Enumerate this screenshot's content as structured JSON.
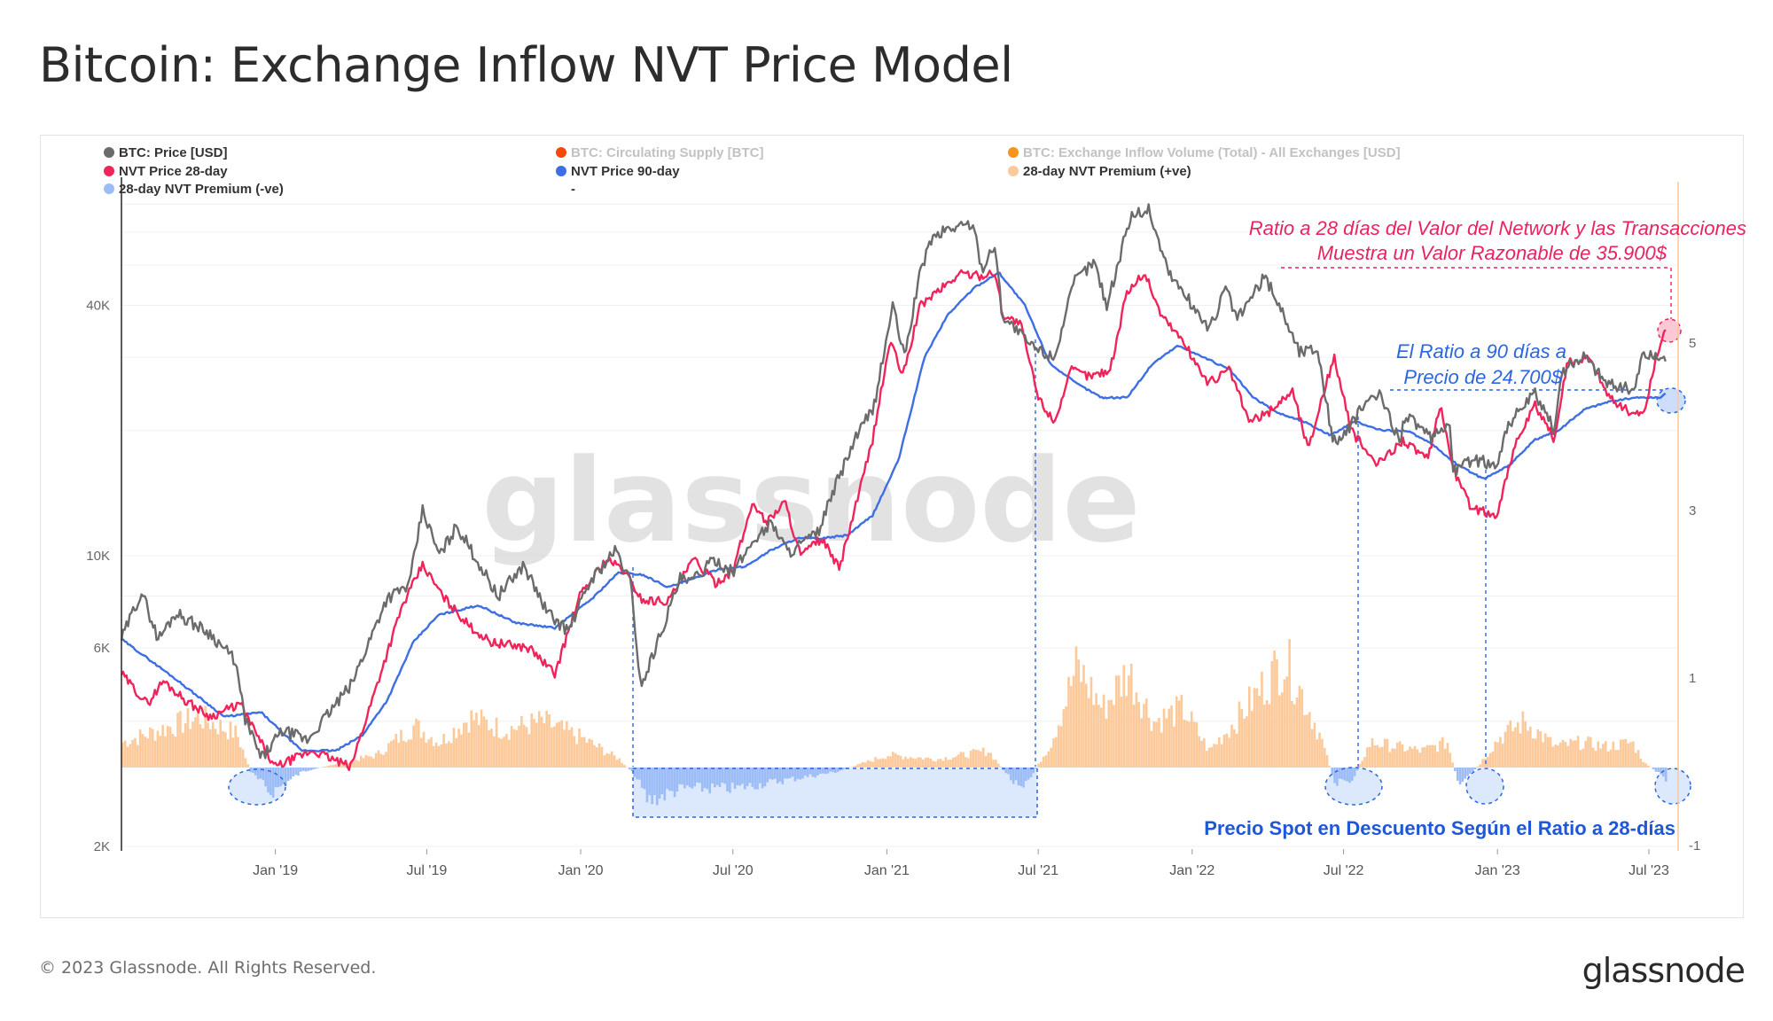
{
  "header": {
    "title": "Bitcoin: Exchange Inflow NVT Price Model"
  },
  "footer": {
    "copyright": "© 2023 Glassnode. All Rights Reserved.",
    "brand": "glassnode"
  },
  "watermark": "glassnode",
  "chart_data": {
    "type": "line",
    "title": "Bitcoin: Exchange Inflow NVT Price Model",
    "y_scale": "log",
    "ylim_left": [
      2000,
      90000
    ],
    "ylim_right": [
      -1,
      7
    ],
    "y_ticks_left": [
      "2K",
      "6K",
      "10K",
      "40K"
    ],
    "y_tick_values_left": [
      2000,
      6000,
      10000,
      40000
    ],
    "y_ticks_right": [
      "-1",
      "1",
      "3",
      "5"
    ],
    "y_tick_values_right": [
      -1,
      1,
      3,
      5
    ],
    "x_range": [
      "2018-07-01",
      "2023-08-05"
    ],
    "x_ticks": [
      "Jan '19",
      "Jul '19",
      "Jan '20",
      "Jul '20",
      "Jan '21",
      "Jul '21",
      "Jan '22",
      "Jul '22",
      "Jan '23",
      "Jul '23"
    ],
    "x_tick_dates": [
      "2019-01-01",
      "2019-07-01",
      "2020-01-01",
      "2020-07-01",
      "2021-01-01",
      "2021-07-01",
      "2022-01-01",
      "2022-07-01",
      "2023-01-01",
      "2023-07-01"
    ],
    "legend": [
      {
        "name": "BTC: Price [USD]",
        "color": "#6b6b6b",
        "muted": false
      },
      {
        "name": "BTC: Circulating Supply [BTC]",
        "color": "#f24a0d",
        "muted": true
      },
      {
        "name": "BTC: Exchange Inflow Volume (Total) - All Exchanges [USD]",
        "color": "#f7931a",
        "muted": true
      },
      {
        "name": "NVT Price 28-day",
        "color": "#f0245a",
        "muted": false
      },
      {
        "name": "NVT Price 90-day",
        "color": "#3d6ee3",
        "muted": false
      },
      {
        "name": "28-day NVT Premium (+ve)",
        "color": "#fcc99a",
        "muted": false
      },
      {
        "name": "28-day NVT Premium (-ve)",
        "color": "#9cbcf6",
        "muted": false
      },
      {
        "name": "-",
        "color": "",
        "muted": false
      }
    ],
    "series": [
      {
        "name": "BTC: Price [USD]",
        "color": "#6b6b6b",
        "x": [
          "2018-07-01",
          "2018-07-25",
          "2018-08-14",
          "2018-09-04",
          "2018-10-15",
          "2018-11-14",
          "2018-11-25",
          "2018-12-15",
          "2019-01-10",
          "2019-02-08",
          "2019-04-02",
          "2019-05-14",
          "2019-06-10",
          "2019-06-26",
          "2019-07-16",
          "2019-08-06",
          "2019-09-24",
          "2019-10-25",
          "2019-11-22",
          "2019-12-17",
          "2020-01-14",
          "2020-02-12",
          "2020-03-01",
          "2020-03-12",
          "2020-03-16",
          "2020-04-29",
          "2020-05-10",
          "2020-06-10",
          "2020-07-01",
          "2020-07-27",
          "2020-08-17",
          "2020-09-05",
          "2020-10-10",
          "2020-10-21",
          "2020-11-05",
          "2020-11-24",
          "2020-12-17",
          "2021-01-08",
          "2021-01-22",
          "2021-02-08",
          "2021-02-21",
          "2021-03-13",
          "2021-04-13",
          "2021-04-25",
          "2021-05-10",
          "2021-05-19",
          "2021-06-22",
          "2021-07-20",
          "2021-08-14",
          "2021-09-06",
          "2021-09-21",
          "2021-10-20",
          "2021-11-10",
          "2021-12-04",
          "2022-01-22",
          "2022-02-10",
          "2022-02-24",
          "2022-03-29",
          "2022-04-18",
          "2022-05-09",
          "2022-05-31",
          "2022-06-18",
          "2022-07-01",
          "2022-07-30",
          "2022-08-14",
          "2022-09-06",
          "2022-09-13",
          "2022-10-14",
          "2022-11-05",
          "2022-11-09",
          "2022-12-01",
          "2022-12-31",
          "2023-01-14",
          "2023-02-15",
          "2023-03-10",
          "2023-03-18",
          "2023-04-14",
          "2023-05-12",
          "2023-06-14",
          "2023-06-23",
          "2023-07-07",
          "2023-07-22"
        ],
        "values": [
          6300,
          8200,
          6300,
          7300,
          6500,
          5600,
          4100,
          3250,
          3800,
          3600,
          4900,
          7900,
          8500,
          12900,
          10000,
          11800,
          8000,
          9500,
          7300,
          6600,
          8800,
          10300,
          8600,
          5000,
          5000,
          8800,
          8600,
          9800,
          9100,
          11000,
          12000,
          10200,
          11300,
          12900,
          15500,
          19000,
          23000,
          40000,
          30000,
          46000,
          57000,
          61000,
          63000,
          49000,
          56000,
          38000,
          32000,
          30000,
          46000,
          51000,
          40000,
          66000,
          68000,
          48000,
          35000,
          44000,
          37000,
          47000,
          39000,
          31000,
          31500,
          19000,
          19300,
          23800,
          24200,
          19000,
          22000,
          19000,
          21000,
          16000,
          17000,
          16600,
          20800,
          24500,
          20000,
          27500,
          30400,
          26000,
          25000,
          30500,
          30200,
          29800
        ]
      },
      {
        "name": "NVT Price 28-day",
        "color": "#f0245a",
        "x": [
          "2018-07-01",
          "2018-08-01",
          "2018-08-20",
          "2018-09-15",
          "2018-10-15",
          "2018-11-20",
          "2018-12-10",
          "2018-12-31",
          "2019-02-15",
          "2019-04-01",
          "2019-05-01",
          "2019-06-01",
          "2019-06-26",
          "2019-07-20",
          "2019-08-20",
          "2019-09-15",
          "2019-11-01",
          "2019-12-01",
          "2019-12-31",
          "2020-01-31",
          "2020-02-20",
          "2020-03-15",
          "2020-04-15",
          "2020-05-15",
          "2020-06-10",
          "2020-07-01",
          "2020-07-25",
          "2020-08-10",
          "2020-09-01",
          "2020-09-20",
          "2020-10-15",
          "2020-11-05",
          "2020-11-25",
          "2020-12-15",
          "2021-01-05",
          "2021-01-20",
          "2021-02-10",
          "2021-03-01",
          "2021-04-01",
          "2021-04-20",
          "2021-05-10",
          "2021-05-20",
          "2021-06-10",
          "2021-07-01",
          "2021-07-20",
          "2021-08-10",
          "2021-09-01",
          "2021-09-25",
          "2021-10-15",
          "2021-11-05",
          "2021-11-25",
          "2021-12-20",
          "2022-01-20",
          "2022-02-15",
          "2022-03-10",
          "2022-04-01",
          "2022-05-01",
          "2022-05-20",
          "2022-06-05",
          "2022-06-20",
          "2022-07-10",
          "2022-08-10",
          "2022-09-10",
          "2022-10-10",
          "2022-10-25",
          "2022-11-10",
          "2022-12-01",
          "2022-12-31",
          "2023-01-20",
          "2023-02-15",
          "2023-03-10",
          "2023-03-25",
          "2023-04-20",
          "2023-05-15",
          "2023-06-10",
          "2023-06-25",
          "2023-07-10",
          "2023-07-22"
        ],
        "values": [
          5200,
          4400,
          5000,
          4500,
          4100,
          4400,
          3700,
          3100,
          3400,
          3100,
          4800,
          7500,
          9500,
          8000,
          6800,
          6200,
          6000,
          5200,
          8000,
          9800,
          9300,
          7800,
          7800,
          9800,
          8600,
          9200,
          13500,
          12000,
          13500,
          10000,
          11000,
          9300,
          13200,
          19000,
          33000,
          27000,
          40000,
          43000,
          48000,
          47000,
          48000,
          38000,
          36000,
          24000,
          21000,
          28000,
          27000,
          28000,
          43000,
          48000,
          38000,
          33000,
          26000,
          28000,
          21000,
          22000,
          25000,
          18000,
          24000,
          30000,
          20000,
          16500,
          19000,
          17000,
          23000,
          16000,
          13000,
          12500,
          18000,
          23000,
          19000,
          29000,
          30000,
          24000,
          22000,
          22000,
          30000,
          35900
        ]
      },
      {
        "name": "NVT Price 90-day",
        "color": "#3d6ee3",
        "x": [
          "2018-07-01",
          "2018-09-01",
          "2018-11-01",
          "2018-12-15",
          "2019-02-01",
          "2019-03-15",
          "2019-04-15",
          "2019-05-15",
          "2019-06-15",
          "2019-07-15",
          "2019-09-01",
          "2019-10-15",
          "2019-12-01",
          "2020-01-15",
          "2020-02-15",
          "2020-03-15",
          "2020-04-15",
          "2020-05-15",
          "2020-06-15",
          "2020-07-15",
          "2020-08-15",
          "2020-09-15",
          "2020-10-15",
          "2020-11-15",
          "2020-12-15",
          "2021-01-15",
          "2021-02-15",
          "2021-03-15",
          "2021-04-15",
          "2021-05-15",
          "2021-06-15",
          "2021-07-15",
          "2021-08-15",
          "2021-09-15",
          "2021-10-15",
          "2021-11-15",
          "2021-12-15",
          "2022-01-15",
          "2022-02-15",
          "2022-03-15",
          "2022-04-15",
          "2022-05-15",
          "2022-06-15",
          "2022-07-15",
          "2022-08-15",
          "2022-09-15",
          "2022-10-15",
          "2022-11-15",
          "2022-12-15",
          "2023-01-15",
          "2023-02-15",
          "2023-03-15",
          "2023-04-15",
          "2023-05-15",
          "2023-06-15",
          "2023-07-15",
          "2023-07-22"
        ],
        "values": [
          6300,
          5100,
          4100,
          4200,
          3400,
          3400,
          3700,
          4500,
          6200,
          7200,
          7600,
          6900,
          6700,
          7900,
          9100,
          9000,
          8400,
          8800,
          9300,
          9400,
          10300,
          11000,
          11000,
          11200,
          12500,
          17000,
          30000,
          38000,
          44000,
          48000,
          40000,
          29000,
          26000,
          24000,
          24000,
          29000,
          32000,
          30000,
          28000,
          24000,
          22000,
          21000,
          19500,
          21000,
          20000,
          20000,
          18500,
          16500,
          15300,
          16500,
          19000,
          20000,
          22500,
          23500,
          24000,
          24000,
          24700
        ]
      },
      {
        "name": "28-day NVT Premium",
        "color": "#fcc99a",
        "neg_color": "#9cbcf6",
        "x": [
          "2018-07-01",
          "2018-08-15",
          "2018-10-01",
          "2018-11-15",
          "2018-12-01",
          "2018-12-25",
          "2019-01-10",
          "2019-02-01",
          "2019-03-15",
          "2019-05-01",
          "2019-06-15",
          "2019-07-15",
          "2019-08-20",
          "2019-10-01",
          "2019-11-15",
          "2020-01-01",
          "2020-02-15",
          "2020-03-05",
          "2020-03-20",
          "2020-05-01",
          "2020-07-01",
          "2020-09-01",
          "2020-11-01",
          "2021-01-01",
          "2021-03-01",
          "2021-05-01",
          "2021-06-10",
          "2021-06-25",
          "2021-07-15",
          "2021-08-15",
          "2021-09-15",
          "2021-10-15",
          "2021-11-15",
          "2021-12-20",
          "2022-01-20",
          "2022-02-20",
          "2022-03-20",
          "2022-04-20",
          "2022-05-10",
          "2022-06-01",
          "2022-06-20",
          "2022-07-10",
          "2022-08-01",
          "2022-09-01",
          "2022-10-01",
          "2022-11-01",
          "2022-11-15",
          "2022-12-10",
          "2023-01-01",
          "2023-02-01",
          "2023-03-10",
          "2023-04-10",
          "2023-05-10",
          "2023-06-10",
          "2023-06-25",
          "2023-07-22"
        ],
        "values": [
          0.3,
          0.45,
          0.6,
          0.4,
          -0.05,
          -0.3,
          -0.2,
          -0.05,
          0.05,
          0.15,
          0.5,
          0.3,
          0.6,
          0.45,
          0.55,
          0.35,
          0.1,
          -0.1,
          -0.4,
          -0.25,
          -0.25,
          -0.15,
          -0.05,
          0.15,
          0.1,
          0.2,
          -0.3,
          -0.05,
          0.3,
          1.2,
          0.7,
          1.15,
          0.55,
          0.7,
          0.2,
          0.55,
          0.9,
          1.3,
          0.9,
          0.4,
          -0.2,
          -0.15,
          0.3,
          0.25,
          0.2,
          0.3,
          -0.25,
          0.05,
          0.35,
          0.55,
          0.25,
          0.3,
          0.25,
          0.3,
          0.05,
          -0.15
        ]
      }
    ],
    "annotations": [
      {
        "text": "Ratio a 28 días del Valor del Network y las Transacciones",
        "color": "#e8245f"
      },
      {
        "text": "Muestra un Valor Razonable de 35.900$",
        "color": "#e8245f"
      },
      {
        "text": "El Ratio a 90 días a",
        "color": "#2b66e0"
      },
      {
        "text": "Precio de 24.700$",
        "color": "#2b66e0"
      },
      {
        "text": "Precio Spot en Descuento Según el Ratio a 28-días",
        "color": "#1f57d6"
      }
    ],
    "ylabel_left": "",
    "ylabel_right": "",
    "xlabel": ""
  }
}
